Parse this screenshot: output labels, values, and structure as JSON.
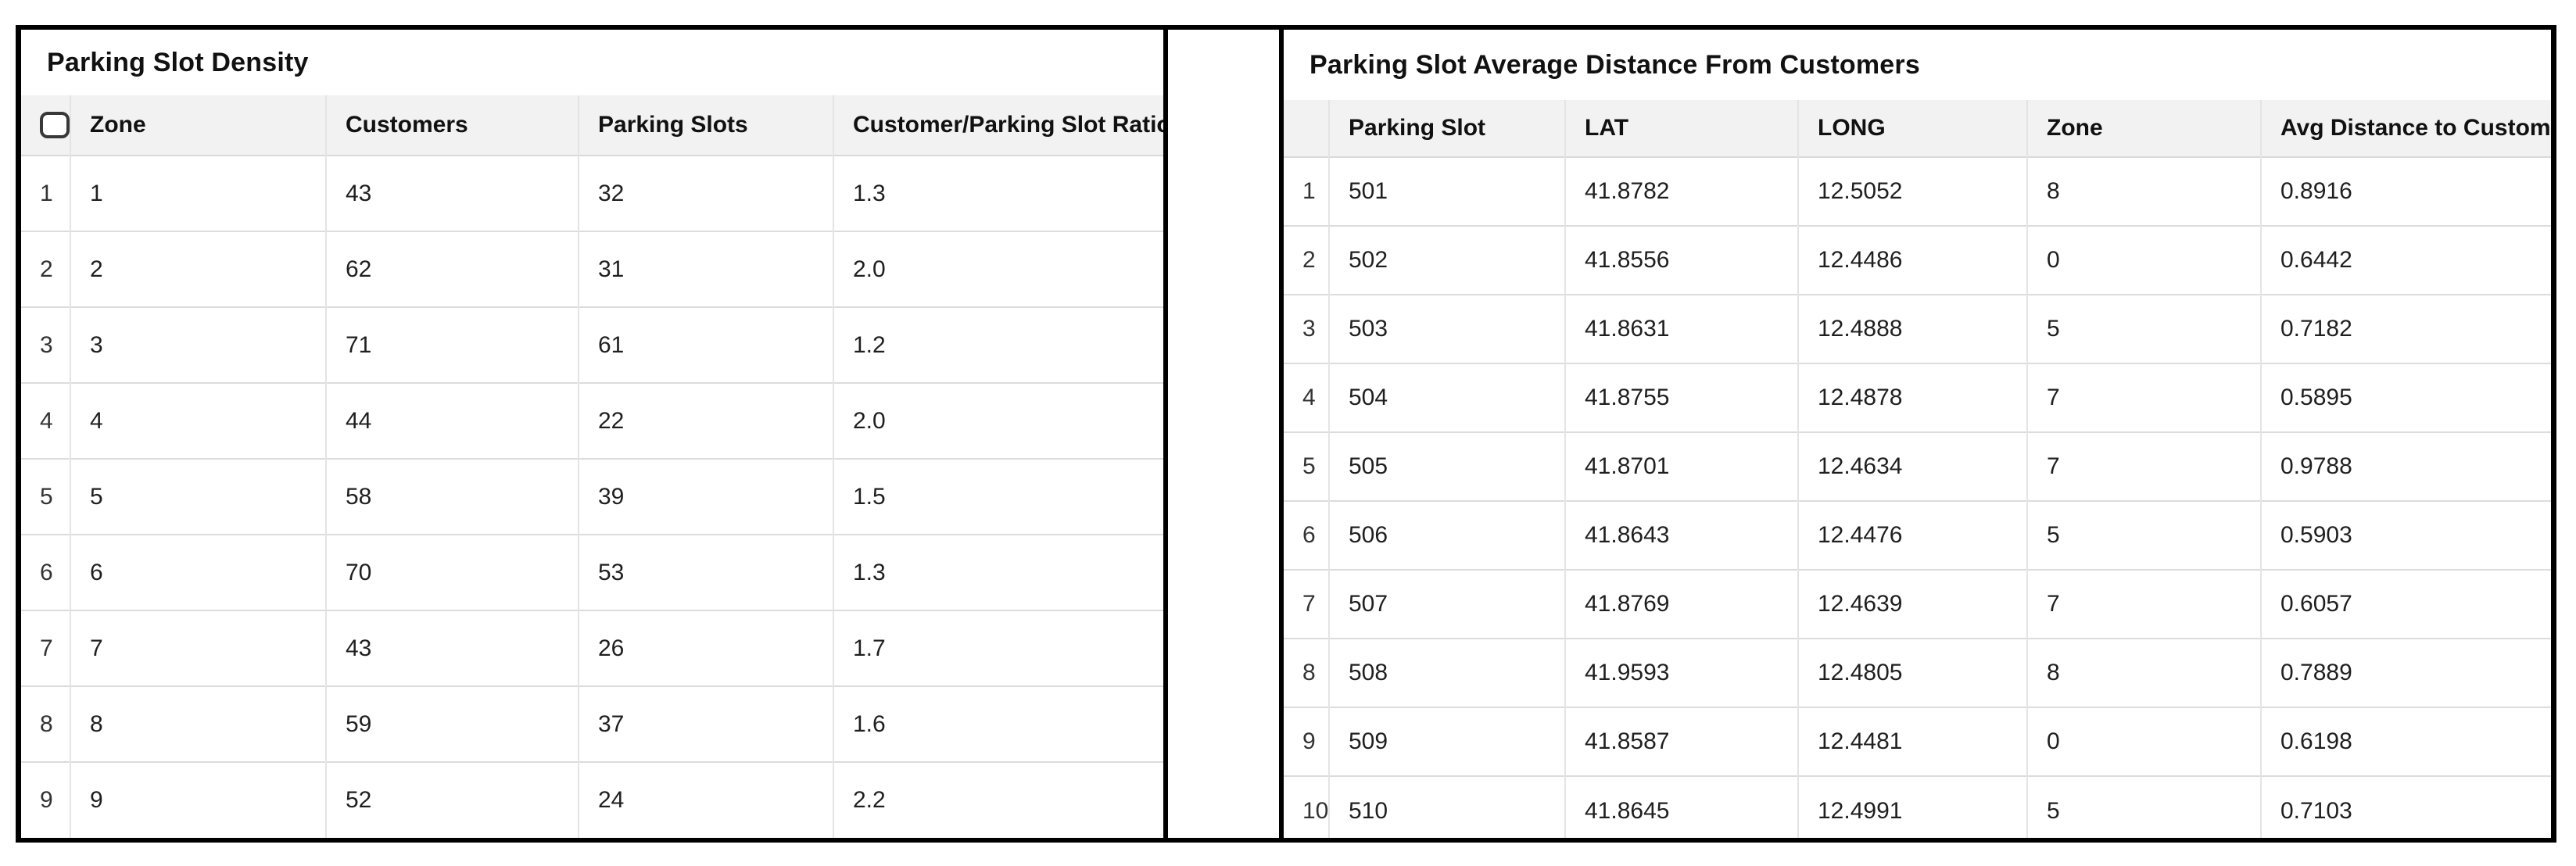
{
  "left_panel": {
    "title": "Parking Slot Density",
    "columns": [
      "Zone",
      "Customers",
      "Parking Slots",
      "Customer/Parking Slot Ratio"
    ],
    "select_all_checkbox": {
      "checked": false
    },
    "rows": [
      {
        "n": "1",
        "zone": "1",
        "customers": "43",
        "parking_slots": "32",
        "ratio": "1.3"
      },
      {
        "n": "2",
        "zone": "2",
        "customers": "62",
        "parking_slots": "31",
        "ratio": "2.0"
      },
      {
        "n": "3",
        "zone": "3",
        "customers": "71",
        "parking_slots": "61",
        "ratio": "1.2"
      },
      {
        "n": "4",
        "zone": "4",
        "customers": "44",
        "parking_slots": "22",
        "ratio": "2.0"
      },
      {
        "n": "5",
        "zone": "5",
        "customers": "58",
        "parking_slots": "39",
        "ratio": "1.5"
      },
      {
        "n": "6",
        "zone": "6",
        "customers": "70",
        "parking_slots": "53",
        "ratio": "1.3"
      },
      {
        "n": "7",
        "zone": "7",
        "customers": "43",
        "parking_slots": "26",
        "ratio": "1.7"
      },
      {
        "n": "8",
        "zone": "8",
        "customers": "59",
        "parking_slots": "37",
        "ratio": "1.6"
      },
      {
        "n": "9",
        "zone": "9",
        "customers": "52",
        "parking_slots": "24",
        "ratio": "2.2"
      }
    ]
  },
  "right_panel": {
    "title": "Parking Slot Average Distance From Customers",
    "columns": [
      "Parking Slot",
      "LAT",
      "LONG",
      "Zone",
      "Avg Distance to Customers"
    ],
    "rows": [
      {
        "n": "1",
        "parking_slot": "501",
        "lat": "41.8782",
        "long": "12.5052",
        "zone": "8",
        "avg_distance": "0.8916"
      },
      {
        "n": "2",
        "parking_slot": "502",
        "lat": "41.8556",
        "long": "12.4486",
        "zone": "0",
        "avg_distance": "0.6442"
      },
      {
        "n": "3",
        "parking_slot": "503",
        "lat": "41.8631",
        "long": "12.4888",
        "zone": "5",
        "avg_distance": "0.7182"
      },
      {
        "n": "4",
        "parking_slot": "504",
        "lat": "41.8755",
        "long": "12.4878",
        "zone": "7",
        "avg_distance": "0.5895"
      },
      {
        "n": "5",
        "parking_slot": "505",
        "lat": "41.8701",
        "long": "12.4634",
        "zone": "7",
        "avg_distance": "0.9788"
      },
      {
        "n": "6",
        "parking_slot": "506",
        "lat": "41.8643",
        "long": "12.4476",
        "zone": "5",
        "avg_distance": "0.5903"
      },
      {
        "n": "7",
        "parking_slot": "507",
        "lat": "41.8769",
        "long": "12.4639",
        "zone": "7",
        "avg_distance": "0.6057"
      },
      {
        "n": "8",
        "parking_slot": "508",
        "lat": "41.9593",
        "long": "12.4805",
        "zone": "8",
        "avg_distance": "0.7889"
      },
      {
        "n": "9",
        "parking_slot": "509",
        "lat": "41.8587",
        "long": "12.4481",
        "zone": "0",
        "avg_distance": "0.6198"
      },
      {
        "n": "10",
        "parking_slot": "510",
        "lat": "41.8645",
        "long": "12.4991",
        "zone": "5",
        "avg_distance": "0.7103"
      }
    ]
  },
  "colors": {
    "panel_border": "#000000",
    "header_bg": "#f2f2f2",
    "row_number_bg": "#f7f7f7",
    "gridline": "#dcdcdc",
    "text": "#1f1f1f"
  }
}
